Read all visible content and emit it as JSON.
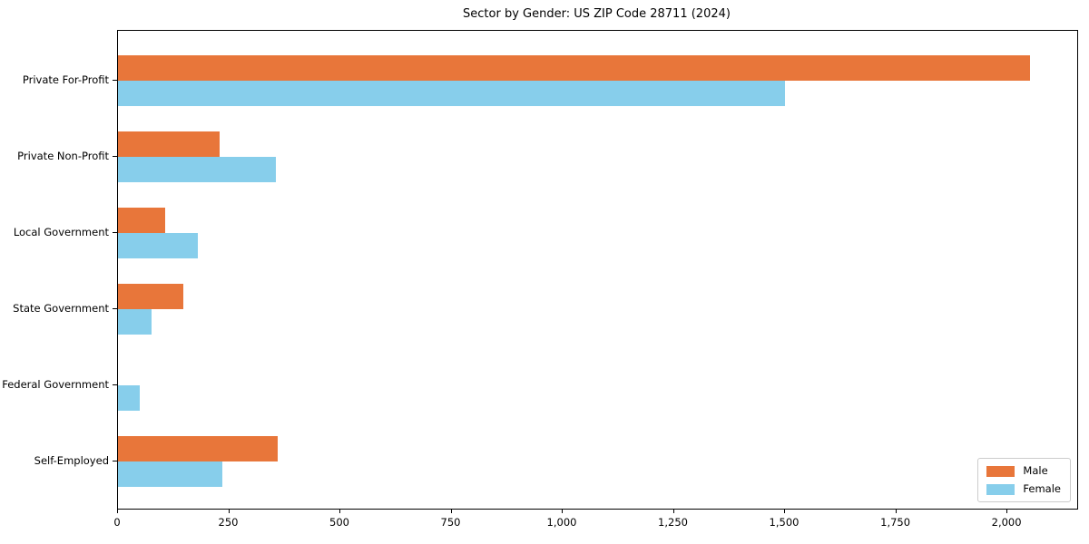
{
  "title": "Sector by Gender: US ZIP Code 28711 (2024)",
  "chart_data": {
    "type": "bar",
    "orientation": "horizontal",
    "title": "Sector by Gender: US ZIP Code 28711 (2024)",
    "xlabel": "",
    "ylabel": "",
    "categories": [
      "Private For-Profit",
      "Private Non-Profit",
      "Local Government",
      "State Government",
      "Federal Government",
      "Self-Employed"
    ],
    "series": [
      {
        "name": "Male",
        "color": "#E8763A",
        "values": [
          2050,
          228,
          107,
          146,
          0,
          360
        ]
      },
      {
        "name": "Female",
        "color": "#87CEEB",
        "values": [
          1500,
          355,
          180,
          75,
          49,
          235
        ]
      }
    ],
    "xlim": [
      0,
      2157
    ],
    "x_ticks": [
      0,
      250,
      500,
      750,
      1000,
      1250,
      1500,
      1750,
      2000
    ],
    "x_tick_labels": [
      "0",
      "250",
      "500",
      "750",
      "1,000",
      "1,250",
      "1,500",
      "1,750",
      "2,000"
    ],
    "grid": false,
    "legend_position": "lower right"
  },
  "legend": {
    "items": [
      {
        "label": "Male",
        "color": "#E8763A"
      },
      {
        "label": "Female",
        "color": "#87CEEB"
      }
    ]
  }
}
